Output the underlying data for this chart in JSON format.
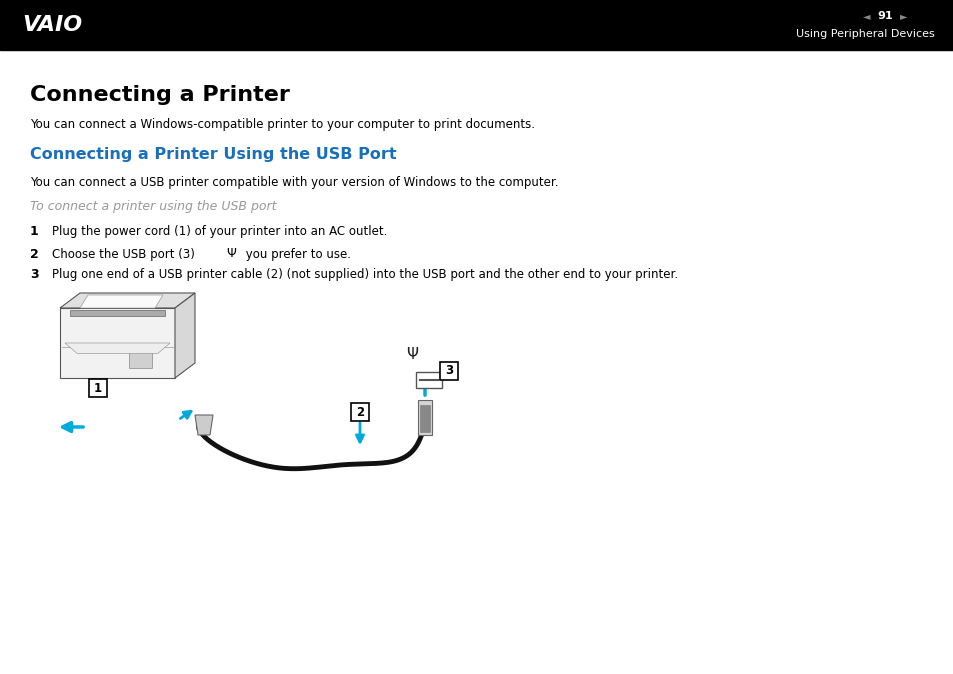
{
  "bg_color": "#ffffff",
  "header_bg": "#000000",
  "header_text_color": "#ffffff",
  "page_number": "91",
  "header_right_text": "Using Peripheral Devices",
  "title_main": "Connecting a Printer",
  "title_sub": "Connecting a Printer Using the USB Port",
  "title_sub_color": "#1a6fbd",
  "body_text_color": "#000000",
  "gray_text_color": "#999999",
  "blue_color": "#00aadd",
  "line1": "You can connect a Windows-compatible printer to your computer to print documents.",
  "subtitle2": "To connect a printer using the USB port",
  "step1_num": "1",
  "step1": "Plug the power cord (1) of your printer into an AC outlet.",
  "step2_num": "2",
  "step2": "Choose the USB port (3)  Ψ  you prefer to use.",
  "step3_num": "3",
  "step3": "Plug one end of a USB printer cable (2) (not supplied) into the USB port and the other end to your printer.",
  "line2": "You can connect a USB printer compatible with your version of Windows to the computer."
}
